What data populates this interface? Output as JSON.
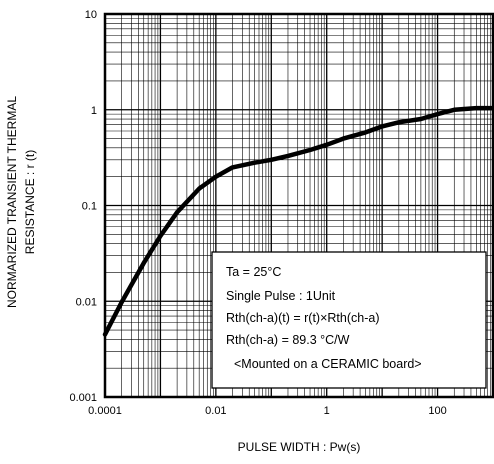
{
  "chart_data": {
    "type": "line",
    "title": "",
    "xlabel": "PULSE WIDTH : Pw(s)",
    "ylabel_lines": [
      "NORMARIZED TRANSIENT THERMAL",
      "RESISTANCE : r (t)"
    ],
    "x_scale": "log",
    "y_scale": "log",
    "xlim": [
      0.0001,
      1000
    ],
    "ylim": [
      0.001,
      10
    ],
    "x_ticks": [
      0.0001,
      0.01,
      1,
      100
    ],
    "x_tick_labels": [
      "0.0001",
      "0.01",
      "1",
      "100"
    ],
    "y_ticks": [
      0.001,
      0.01,
      0.1,
      1,
      10
    ],
    "y_tick_labels": [
      "0.001",
      "0.01",
      "0.1",
      "1",
      "10"
    ],
    "grid": true,
    "series": [
      {
        "name": "",
        "color": "#000000",
        "x": [
          0.0001,
          0.0002,
          0.0005,
          0.001,
          0.002,
          0.005,
          0.01,
          0.02,
          0.05,
          0.1,
          0.2,
          0.5,
          1,
          2,
          5,
          10,
          20,
          50,
          100,
          200,
          500,
          1000
        ],
        "y": [
          0.0045,
          0.0098,
          0.025,
          0.048,
          0.085,
          0.15,
          0.2,
          0.25,
          0.28,
          0.3,
          0.33,
          0.38,
          0.43,
          0.5,
          0.58,
          0.67,
          0.74,
          0.8,
          0.9,
          1.0,
          1.04,
          1.04
        ]
      }
    ],
    "annotation_box": {
      "lines": [
        "Ta = 25°C",
        "Single Pulse : 1Unit",
        "Rth(ch-a)(t) = r(t)×Rth(ch-a)",
        "Rth(ch-a) = 89.3 °C/W",
        "<Mounted on a CERAMIC board>"
      ]
    }
  }
}
